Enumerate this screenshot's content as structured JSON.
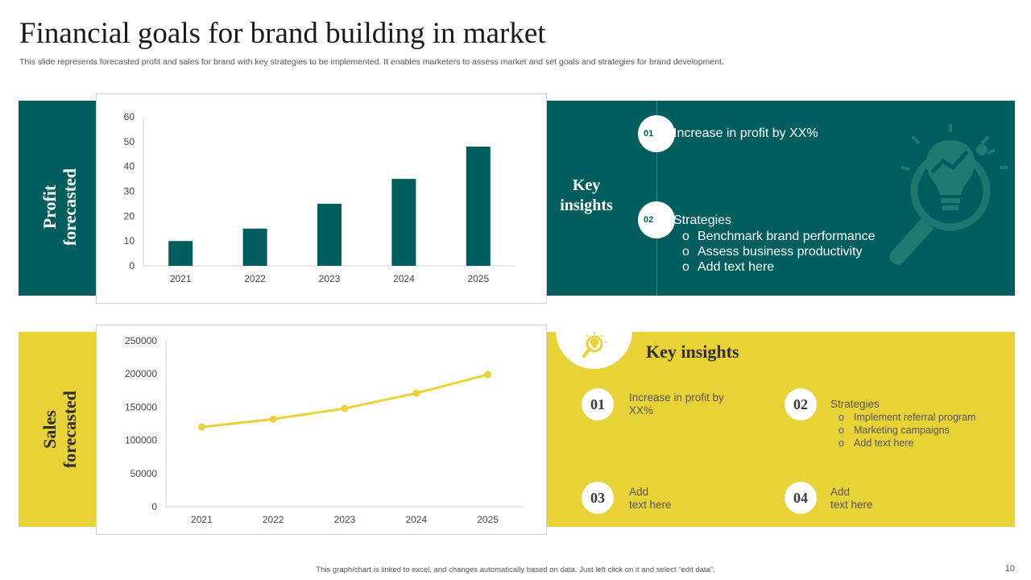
{
  "title": "Financial goals for brand building in market",
  "subtitle": "This slide represents forecasted profit and sales for brand with key strategies to be implemented. It enables marketers to assess market and set goals and strategies for brand development.",
  "colors": {
    "teal": "#005e5e",
    "yellow": "#e8d236",
    "line": "#e8d236"
  },
  "profit": {
    "side_label_1": "Profit",
    "side_label_2": "forecasted",
    "insights_title_1": "Key",
    "insights_title_2": "insights",
    "items": [
      {
        "num": "01",
        "text": "Increase  in profit by XX%"
      },
      {
        "num": "02",
        "text": "Strategies",
        "bullets": [
          "Benchmark brand performance",
          "Assess business productivity",
          "Add text here"
        ]
      }
    ],
    "bullet_char": "o",
    "chevron": "chevron-right-icon",
    "bg_icon": "lightbulb-magnifier-icon"
  },
  "sales": {
    "side_label_1": "Sales",
    "side_label_2": "forecasted",
    "insights_title": "Key insights",
    "header_icon": "lightbulb-magnifier-icon",
    "items": [
      {
        "num": "01",
        "text_1": "Increase in profit by",
        "text_2": "XX%"
      },
      {
        "num": "02",
        "text": "Strategies",
        "bullets": [
          "Implement  referral  program",
          "Marketing  campaigns",
          "Add text here"
        ]
      },
      {
        "num": "03",
        "text_1": "Add",
        "text_2": "text here"
      },
      {
        "num": "04",
        "text_1": "Add",
        "text_2": "text here"
      }
    ],
    "bullet_char": "o"
  },
  "chart_data": [
    {
      "type": "bar",
      "title": "Profit forecasted",
      "categories": [
        "2021",
        "2022",
        "2023",
        "2024",
        "2025"
      ],
      "values": [
        10,
        15,
        25,
        35,
        48
      ],
      "yticks": [
        "0",
        "10",
        "20",
        "30",
        "40",
        "50",
        "60"
      ],
      "ylim": [
        0,
        60
      ],
      "xlabel": "",
      "ylabel": ""
    },
    {
      "type": "line",
      "title": "Sales forecasted",
      "categories": [
        "2021",
        "2022",
        "2023",
        "2024",
        "2025"
      ],
      "values": [
        120000,
        132000,
        148000,
        171000,
        199000
      ],
      "yticks": [
        "0",
        "50000",
        "100000",
        "150000",
        "200000",
        "250000"
      ],
      "ylim": [
        0,
        250000
      ],
      "xlabel": "",
      "ylabel": ""
    }
  ],
  "footer": "This graph/chart is linked to excel, and changes automatically based on data. Just left click on it and select “edit data”.",
  "page_number": "10"
}
